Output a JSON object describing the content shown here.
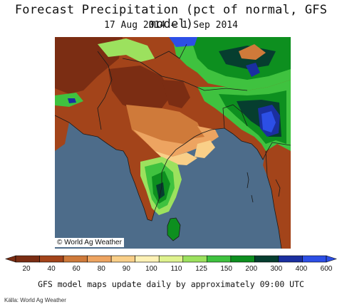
{
  "header": {
    "title": "Forecast Precipitation (pct of normal, GFS model)",
    "subtitle": "17 Aug 2014 — 1 Sep 2014"
  },
  "map": {
    "credit": "© World Ag Weather",
    "colors": {
      "ocean": "#4d6c8a",
      "border": "#1a1a1a"
    }
  },
  "legend": {
    "labels": [
      "20",
      "40",
      "60",
      "80",
      "90",
      "100",
      "110",
      "125",
      "150",
      "200",
      "300",
      "400",
      "600"
    ],
    "colors": [
      "#7b2d13",
      "#a3441a",
      "#cf7a3a",
      "#eda461",
      "#f9cf88",
      "#fdf1b5",
      "#dff28e",
      "#9ce15e",
      "#3fc23f",
      "#0d8f1f",
      "#063e2f",
      "#1a2fa0",
      "#2c4fe6"
    ]
  },
  "footer": {
    "note": "GFS model maps update daily by approximately 09:00 UTC",
    "source": "Källa: World Ag Weather"
  }
}
